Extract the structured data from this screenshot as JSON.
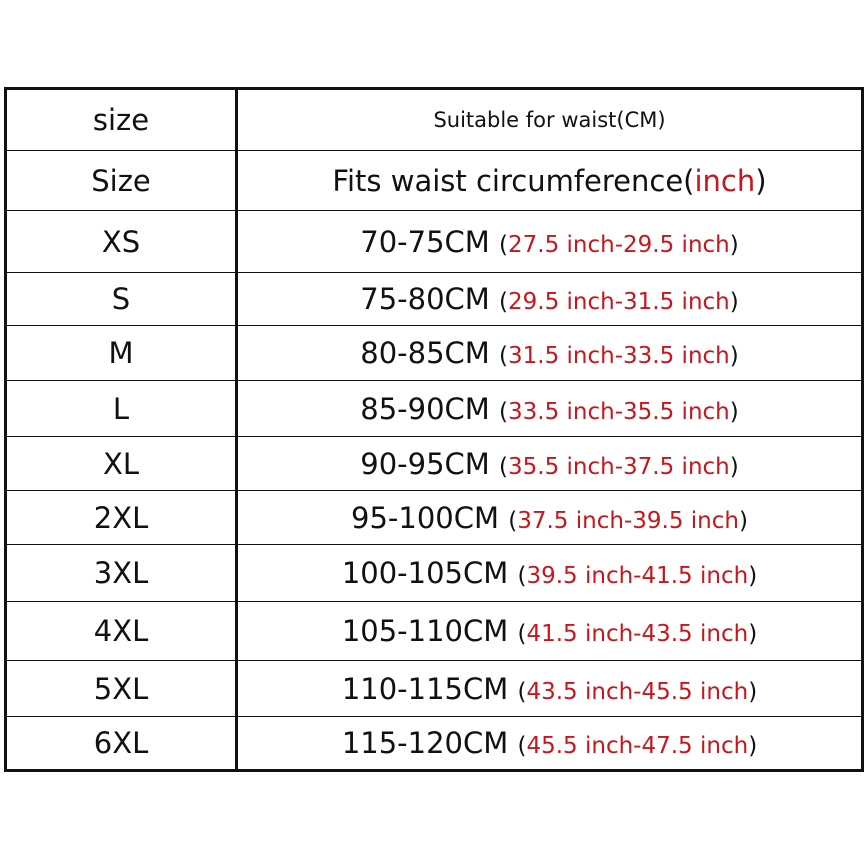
{
  "colors": {
    "text": "#111111",
    "accent_red": "#c8161d"
  },
  "header": [
    {
      "size": "size",
      "waist": "Suitable for waist(CM)"
    },
    {
      "size": "Size",
      "waist_prefix": "Fits waist circumference(",
      "waist_red": "inch",
      "waist_suffix": ")"
    }
  ],
  "rows": [
    {
      "size": "XS",
      "cm": "70-75CM",
      "inch": "27.5 inch-29.5 inch"
    },
    {
      "size": "S",
      "cm": "75-80CM",
      "inch": "29.5 inch-31.5 inch"
    },
    {
      "size": "M",
      "cm": "80-85CM",
      "inch": "31.5 inch-33.5 inch"
    },
    {
      "size": "L",
      "cm": "85-90CM",
      "inch": "33.5 inch-35.5 inch"
    },
    {
      "size": "XL",
      "cm": "90-95CM",
      "inch": "35.5 inch-37.5 inch"
    },
    {
      "size": "2XL",
      "cm": "95-100CM",
      "inch": "37.5 inch-39.5 inch"
    },
    {
      "size": "3XL",
      "cm": "100-105CM",
      "inch": "39.5 inch-41.5 inch"
    },
    {
      "size": "4XL",
      "cm": "105-110CM",
      "inch": "41.5 inch-43.5 inch"
    },
    {
      "size": "5XL",
      "cm": "110-115CM",
      "inch": "43.5 inch-45.5 inch"
    },
    {
      "size": "6XL",
      "cm": "115-120CM",
      "inch": "45.5 inch-47.5 inch"
    }
  ]
}
